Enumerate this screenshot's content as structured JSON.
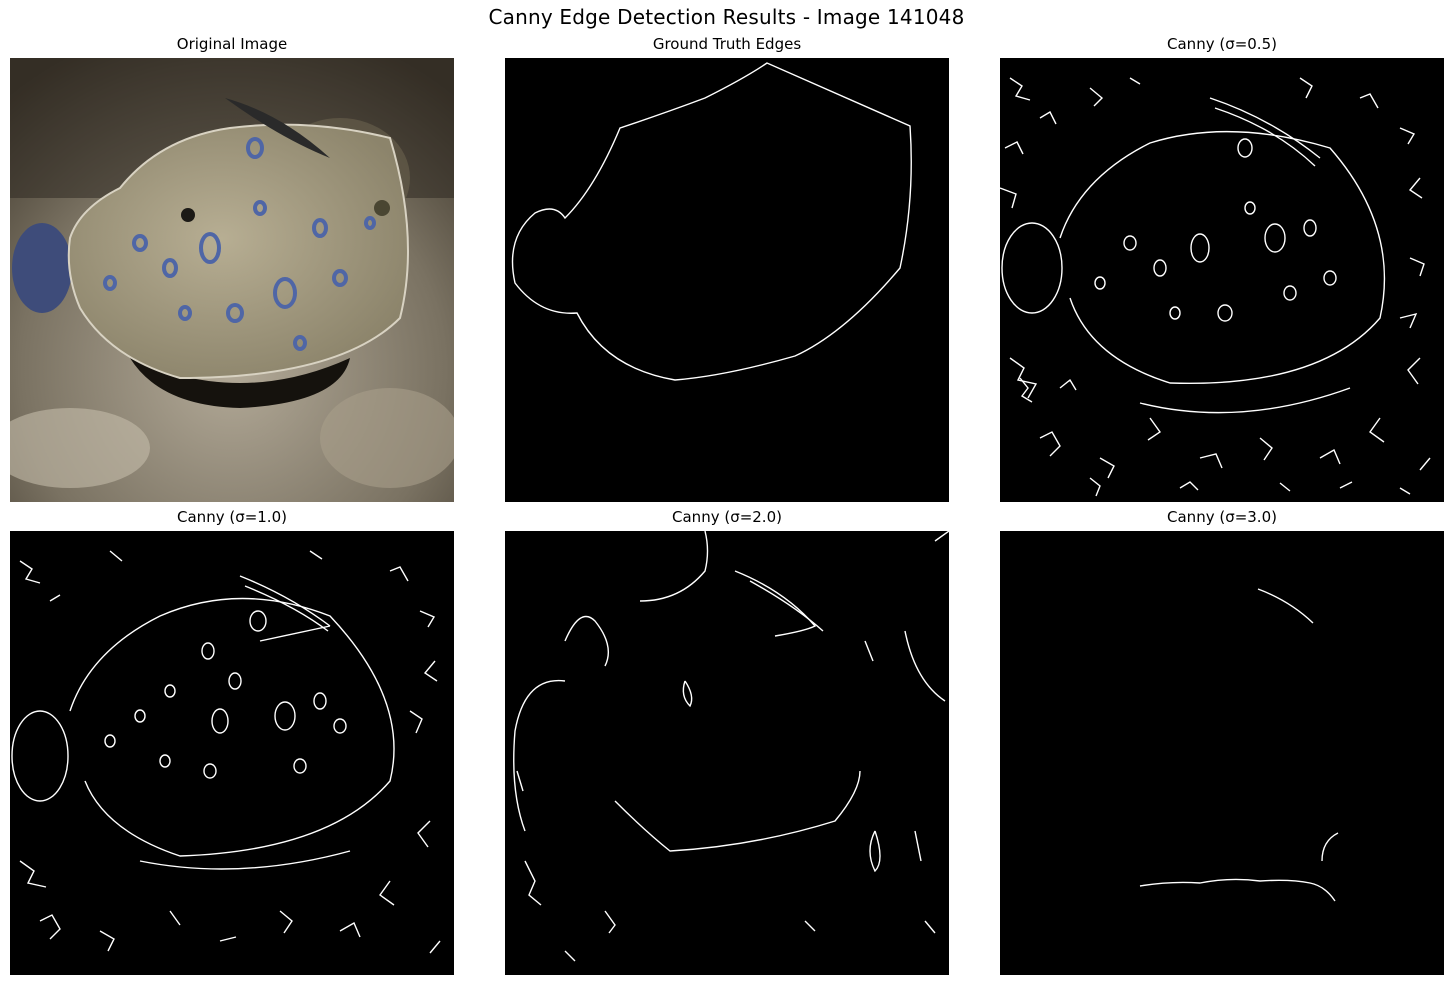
{
  "figure": {
    "title": "Canny Edge Detection Results - Image 141048"
  },
  "panels": [
    {
      "title": "Original Image",
      "kind": "photo"
    },
    {
      "title": "Ground Truth Edges",
      "kind": "edge-map"
    },
    {
      "title": "Canny (σ=0.5)",
      "kind": "edge-map"
    },
    {
      "title": "Canny (σ=1.0)",
      "kind": "edge-map"
    },
    {
      "title": "Canny (σ=2.0)",
      "kind": "edge-map"
    },
    {
      "title": "Canny (σ=3.0)",
      "kind": "edge-map"
    }
  ],
  "colors": {
    "edge_background": "#000000",
    "edge_stroke": "#ffffff",
    "fish_body": "#a39a80",
    "fish_spots": "#4f66a6",
    "seafloor": "#8a8170"
  }
}
